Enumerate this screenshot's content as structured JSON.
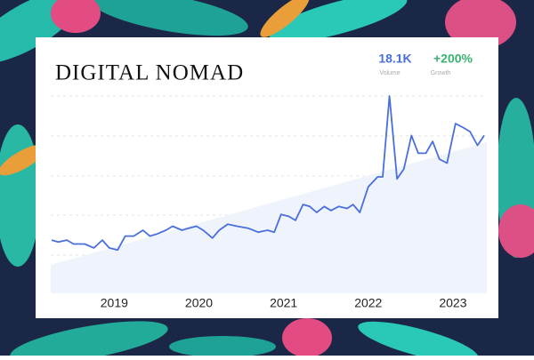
{
  "brand": "DIGITAL NOMAD",
  "stats": [
    {
      "value": "18.1K",
      "label": "Volume"
    },
    {
      "value": "+200%",
      "label": "Growth"
    }
  ],
  "chart_data": {
    "type": "line",
    "x": [
      2018.26,
      2018.34,
      2018.44,
      2018.52,
      2018.65,
      2018.76,
      2018.86,
      2018.94,
      2019.04,
      2019.13,
      2019.23,
      2019.34,
      2019.42,
      2019.5,
      2019.61,
      2019.69,
      2019.8,
      2019.88,
      2019.97,
      2020.05,
      2020.16,
      2020.24,
      2020.34,
      2020.45,
      2020.58,
      2020.7,
      2020.81,
      2020.89,
      2020.97,
      2021.06,
      2021.14,
      2021.23,
      2021.31,
      2021.39,
      2021.48,
      2021.56,
      2021.65,
      2021.75,
      2021.82,
      2021.9,
      2022.0,
      2022.11,
      2022.17,
      2022.25,
      2022.34,
      2022.42,
      2022.51,
      2022.59,
      2022.68,
      2022.76,
      2022.84,
      2022.93,
      2023.03,
      2023.12,
      2023.2,
      2023.29,
      2023.37
    ],
    "values": [
      27,
      26,
      27,
      25,
      25,
      23,
      27,
      23,
      22,
      29,
      29,
      32,
      29,
      30,
      32,
      34,
      32,
      33,
      34,
      32,
      28,
      32,
      35,
      34,
      33,
      31,
      32,
      31,
      40,
      39,
      37,
      45,
      44,
      41,
      44,
      42,
      44,
      43,
      45,
      41,
      54,
      59,
      59,
      100,
      58,
      63,
      80,
      71,
      71,
      77,
      68,
      66,
      86,
      84,
      82,
      75,
      80
    ],
    "color": "#4a6fdc",
    "xlim": [
      2018.25,
      2023.4
    ],
    "xticks": [
      2019,
      2020,
      2021,
      2022,
      2023
    ],
    "ylim": [
      0,
      100
    ]
  }
}
